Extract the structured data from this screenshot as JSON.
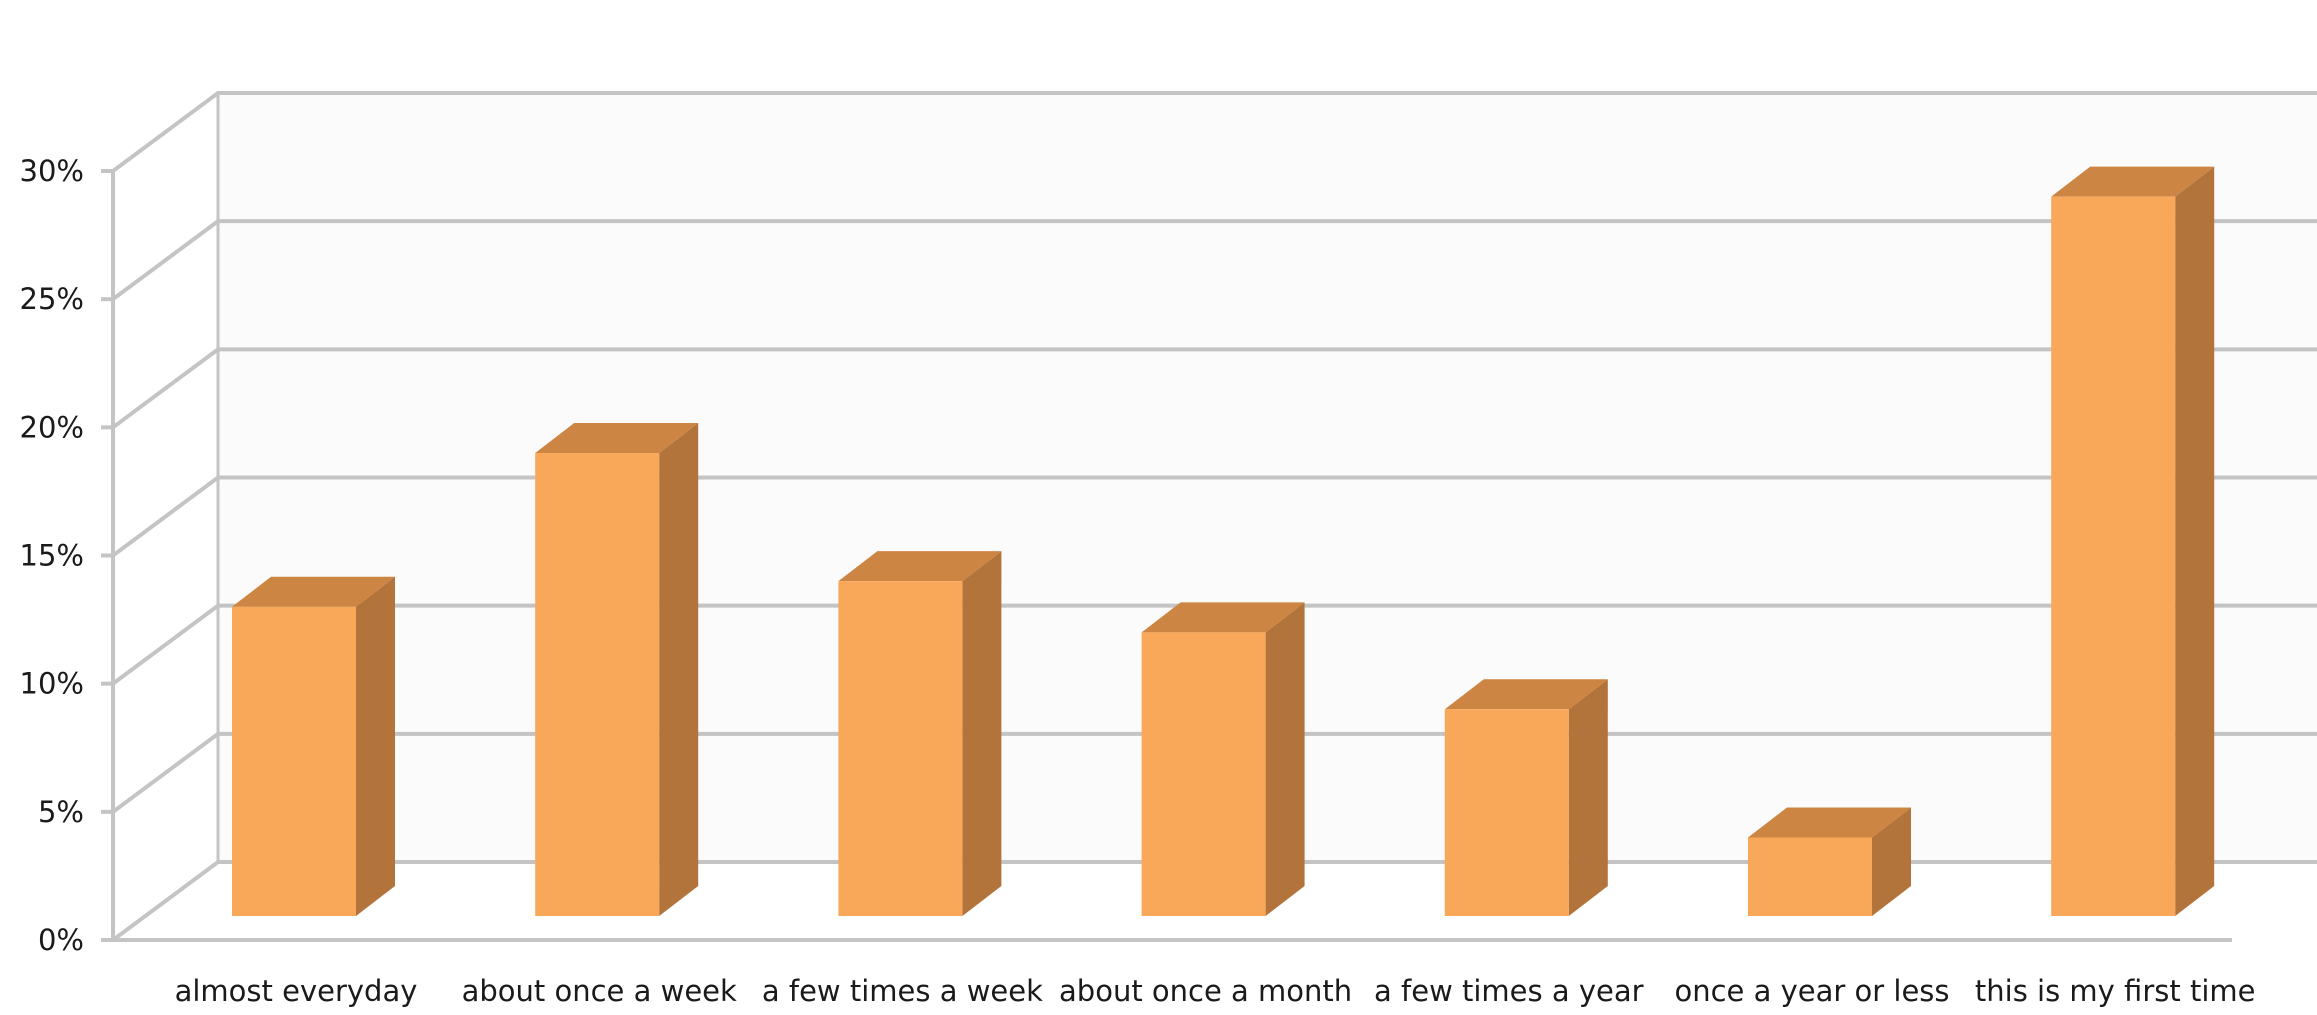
{
  "chart_data": {
    "type": "bar",
    "title": "",
    "xlabel": "",
    "ylabel": "",
    "categories": [
      "almost everyday",
      "about once a week",
      "a few times a week",
      "about once a month",
      "a few times a year",
      "once a year or less",
      "this is my first time"
    ],
    "series": [
      {
        "values": [
          13.0,
          19.0,
          14.0,
          12.0,
          9.0,
          4.0,
          29.0
        ]
      }
    ],
    "ylim": [
      0,
      30
    ],
    "y_ticks": [
      0,
      5,
      10,
      15,
      20,
      25,
      30
    ],
    "y_tick_labels": [
      "0%",
      "5%",
      "10%",
      "15%",
      "20%",
      "25%",
      "30%"
    ],
    "three_d": true,
    "grid": true,
    "legend": "none",
    "colors": {
      "bar_front": "#f9a85a",
      "bar_top": "#cc8543",
      "bar_side": "#b2743b",
      "grid": "#c4c4c4",
      "wall": "#fbfbfb"
    }
  }
}
